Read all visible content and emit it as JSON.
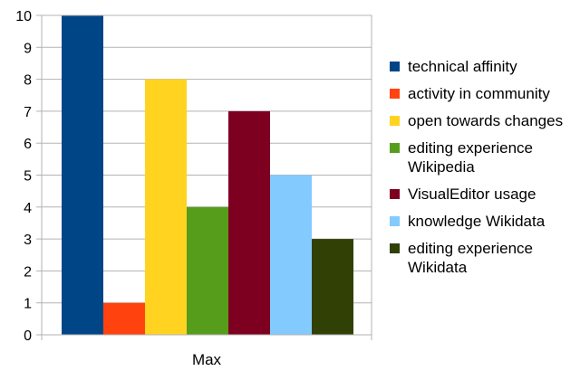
{
  "chart_data": {
    "type": "bar",
    "categories": [
      "Max"
    ],
    "series": [
      {
        "name": "technical affinity",
        "values": [
          10
        ],
        "color": "#004586"
      },
      {
        "name": "activity in community",
        "values": [
          1
        ],
        "color": "#ff420e"
      },
      {
        "name": "open towards changes",
        "values": [
          8
        ],
        "color": "#ffd320"
      },
      {
        "name": "editing experience Wikipedia",
        "values": [
          4
        ],
        "color": "#579d1c"
      },
      {
        "name": "VisualEditor usage",
        "values": [
          7
        ],
        "color": "#7e0021"
      },
      {
        "name": "knowledge Wikidata",
        "values": [
          5
        ],
        "color": "#83caff"
      },
      {
        "name": "editing experience Wikidata",
        "values": [
          3
        ],
        "color": "#314004"
      }
    ],
    "ylim": [
      0,
      10
    ],
    "yticks": [
      "0",
      "1",
      "2",
      "3",
      "4",
      "5",
      "6",
      "7",
      "8",
      "9",
      "10"
    ],
    "title": "",
    "xlabel": "",
    "ylabel": "",
    "grid": true,
    "legend_position": "right"
  }
}
